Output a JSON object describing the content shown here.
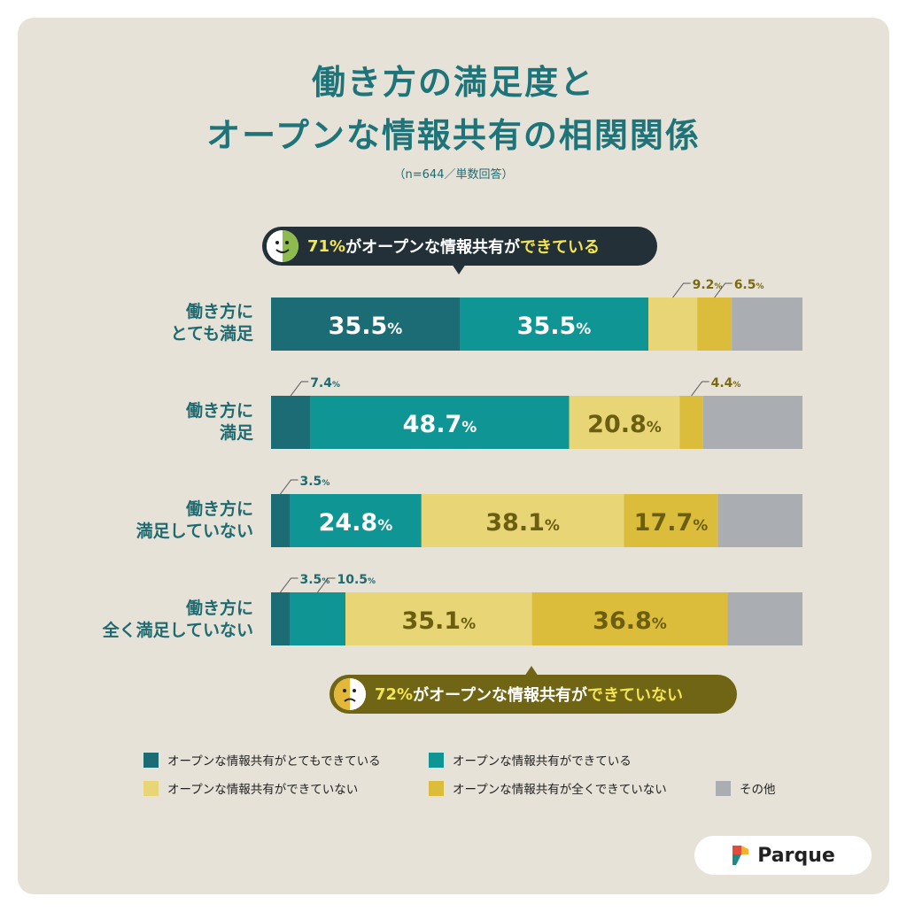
{
  "title_line1": "働き方の満足度と",
  "title_line2": "オープンな情報共有の相関関係",
  "subtitle": "（n=644／単数回答）",
  "callout_top": {
    "highlight": "71%",
    "mid": "がオープンな情報共有が",
    "tail": "できている"
  },
  "callout_bottom": {
    "highlight": "72%",
    "mid": "がオープンな情報共有が",
    "tail": "できていない"
  },
  "categories": [
    {
      "line1": "働き方に",
      "line2": "とても満足"
    },
    {
      "line1": "働き方に",
      "line2": "満足"
    },
    {
      "line1": "働き方に",
      "line2": "満足していない"
    },
    {
      "line1": "働き方に",
      "line2": "全く満足していない"
    }
  ],
  "chart_data": {
    "type": "bar",
    "orientation": "horizontal-stacked-100",
    "title": "働き方の満足度とオープンな情報共有の相関関係",
    "categories": [
      "働き方にとても満足",
      "働き方に満足",
      "働き方に満足していない",
      "働き方に全く満足していない"
    ],
    "series": [
      {
        "name": "オープンな情報共有がとてもできている",
        "color": "#1b6c75",
        "values": [
          35.5,
          7.4,
          3.5,
          3.5
        ]
      },
      {
        "name": "オープンな情報共有ができている",
        "color": "#0f9593",
        "values": [
          35.5,
          48.7,
          24.8,
          10.5
        ]
      },
      {
        "name": "オープンな情報共有ができていない",
        "color": "#e8d576",
        "values": [
          9.2,
          20.8,
          38.1,
          35.1
        ]
      },
      {
        "name": "オープンな情報共有が全くできていない",
        "color": "#dcbd3b",
        "values": [
          6.5,
          4.4,
          17.7,
          36.8
        ]
      },
      {
        "name": "その他",
        "color": "#aaadb1",
        "values": [
          13.3,
          18.7,
          15.9,
          14.1
        ]
      }
    ],
    "labels": [
      [
        {
          "text": "35.5",
          "pos": "inside"
        },
        {
          "text": "35.5",
          "pos": "inside"
        },
        {
          "text": "9.2",
          "pos": "above"
        },
        {
          "text": "6.5",
          "pos": "above"
        },
        null
      ],
      [
        {
          "text": "7.4",
          "pos": "above"
        },
        {
          "text": "48.7",
          "pos": "inside"
        },
        {
          "text": "20.8",
          "pos": "inside"
        },
        {
          "text": "4.4",
          "pos": "above"
        },
        null
      ],
      [
        {
          "text": "3.5",
          "pos": "above"
        },
        {
          "text": "24.8",
          "pos": "inside"
        },
        {
          "text": "38.1",
          "pos": "inside"
        },
        {
          "text": "17.7",
          "pos": "inside"
        },
        null
      ],
      [
        {
          "text": "3.5",
          "pos": "above"
        },
        {
          "text": "10.5",
          "pos": "above"
        },
        {
          "text": "35.1",
          "pos": "inside"
        },
        {
          "text": "36.8",
          "pos": "inside"
        },
        null
      ]
    ],
    "unit": "%",
    "xlim": [
      0,
      100
    ]
  },
  "legend": [
    {
      "label": "オープンな情報共有がとてもできている",
      "color": "#1b6c75"
    },
    {
      "label": "オープンな情報共有ができている",
      "color": "#0f9593"
    },
    {
      "label": "オープンな情報共有ができていない",
      "color": "#e8d576"
    },
    {
      "label": "オープンな情報共有が全くできていない",
      "color": "#dcbd3b"
    },
    {
      "label": "その他",
      "color": "#aaadb1"
    }
  ],
  "brand": "Parque"
}
